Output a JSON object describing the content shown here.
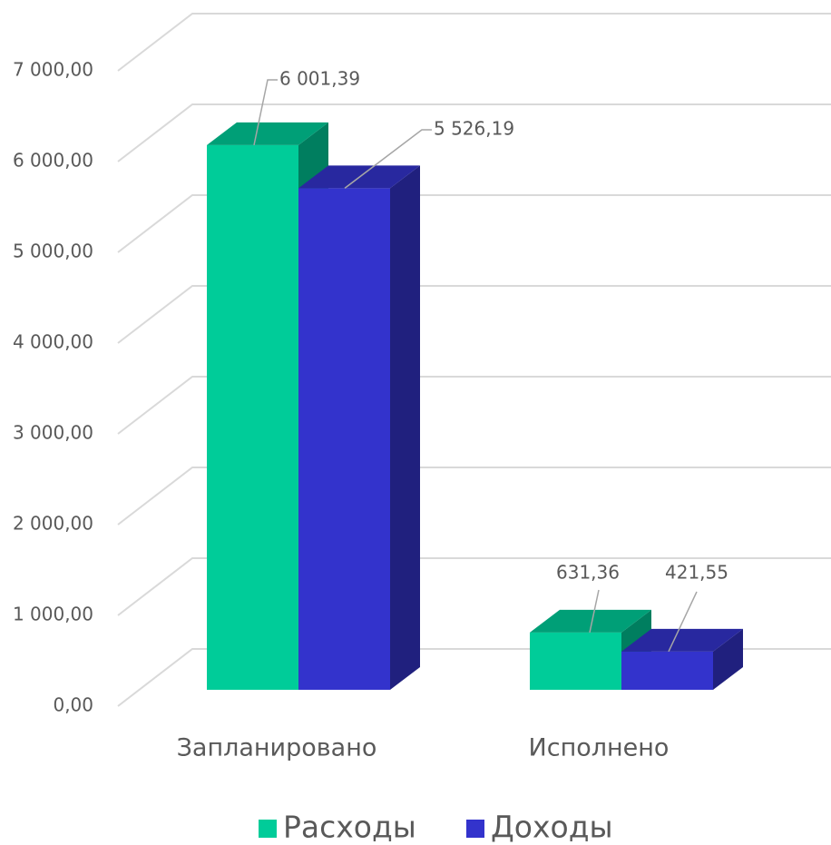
{
  "chart_data": {
    "type": "bar3d",
    "categories": [
      "Запланировано",
      "Исполнено"
    ],
    "series": [
      {
        "name": "Расходы",
        "color": "#00cc99",
        "values": [
          6001.39,
          631.36
        ],
        "value_labels": [
          "6 001,39",
          "631,36"
        ]
      },
      {
        "name": "Доходы",
        "color": "#3333cc",
        "values": [
          5526.19,
          421.55
        ],
        "value_labels": [
          "5 526,19",
          "421,55"
        ]
      }
    ],
    "ylim": [
      0,
      7000
    ],
    "yticks": [
      {
        "value": 0,
        "label": "0,00"
      },
      {
        "value": 1000,
        "label": "1 000,00"
      },
      {
        "value": 2000,
        "label": "2 000,00"
      },
      {
        "value": 3000,
        "label": "3 000,00"
      },
      {
        "value": 4000,
        "label": "4 000,00"
      },
      {
        "value": 5000,
        "label": "5 000,00"
      },
      {
        "value": 6000,
        "label": "6 000,00"
      },
      {
        "value": 7000,
        "label": "7 000,00"
      }
    ],
    "grid": true,
    "legend": "bottom"
  }
}
